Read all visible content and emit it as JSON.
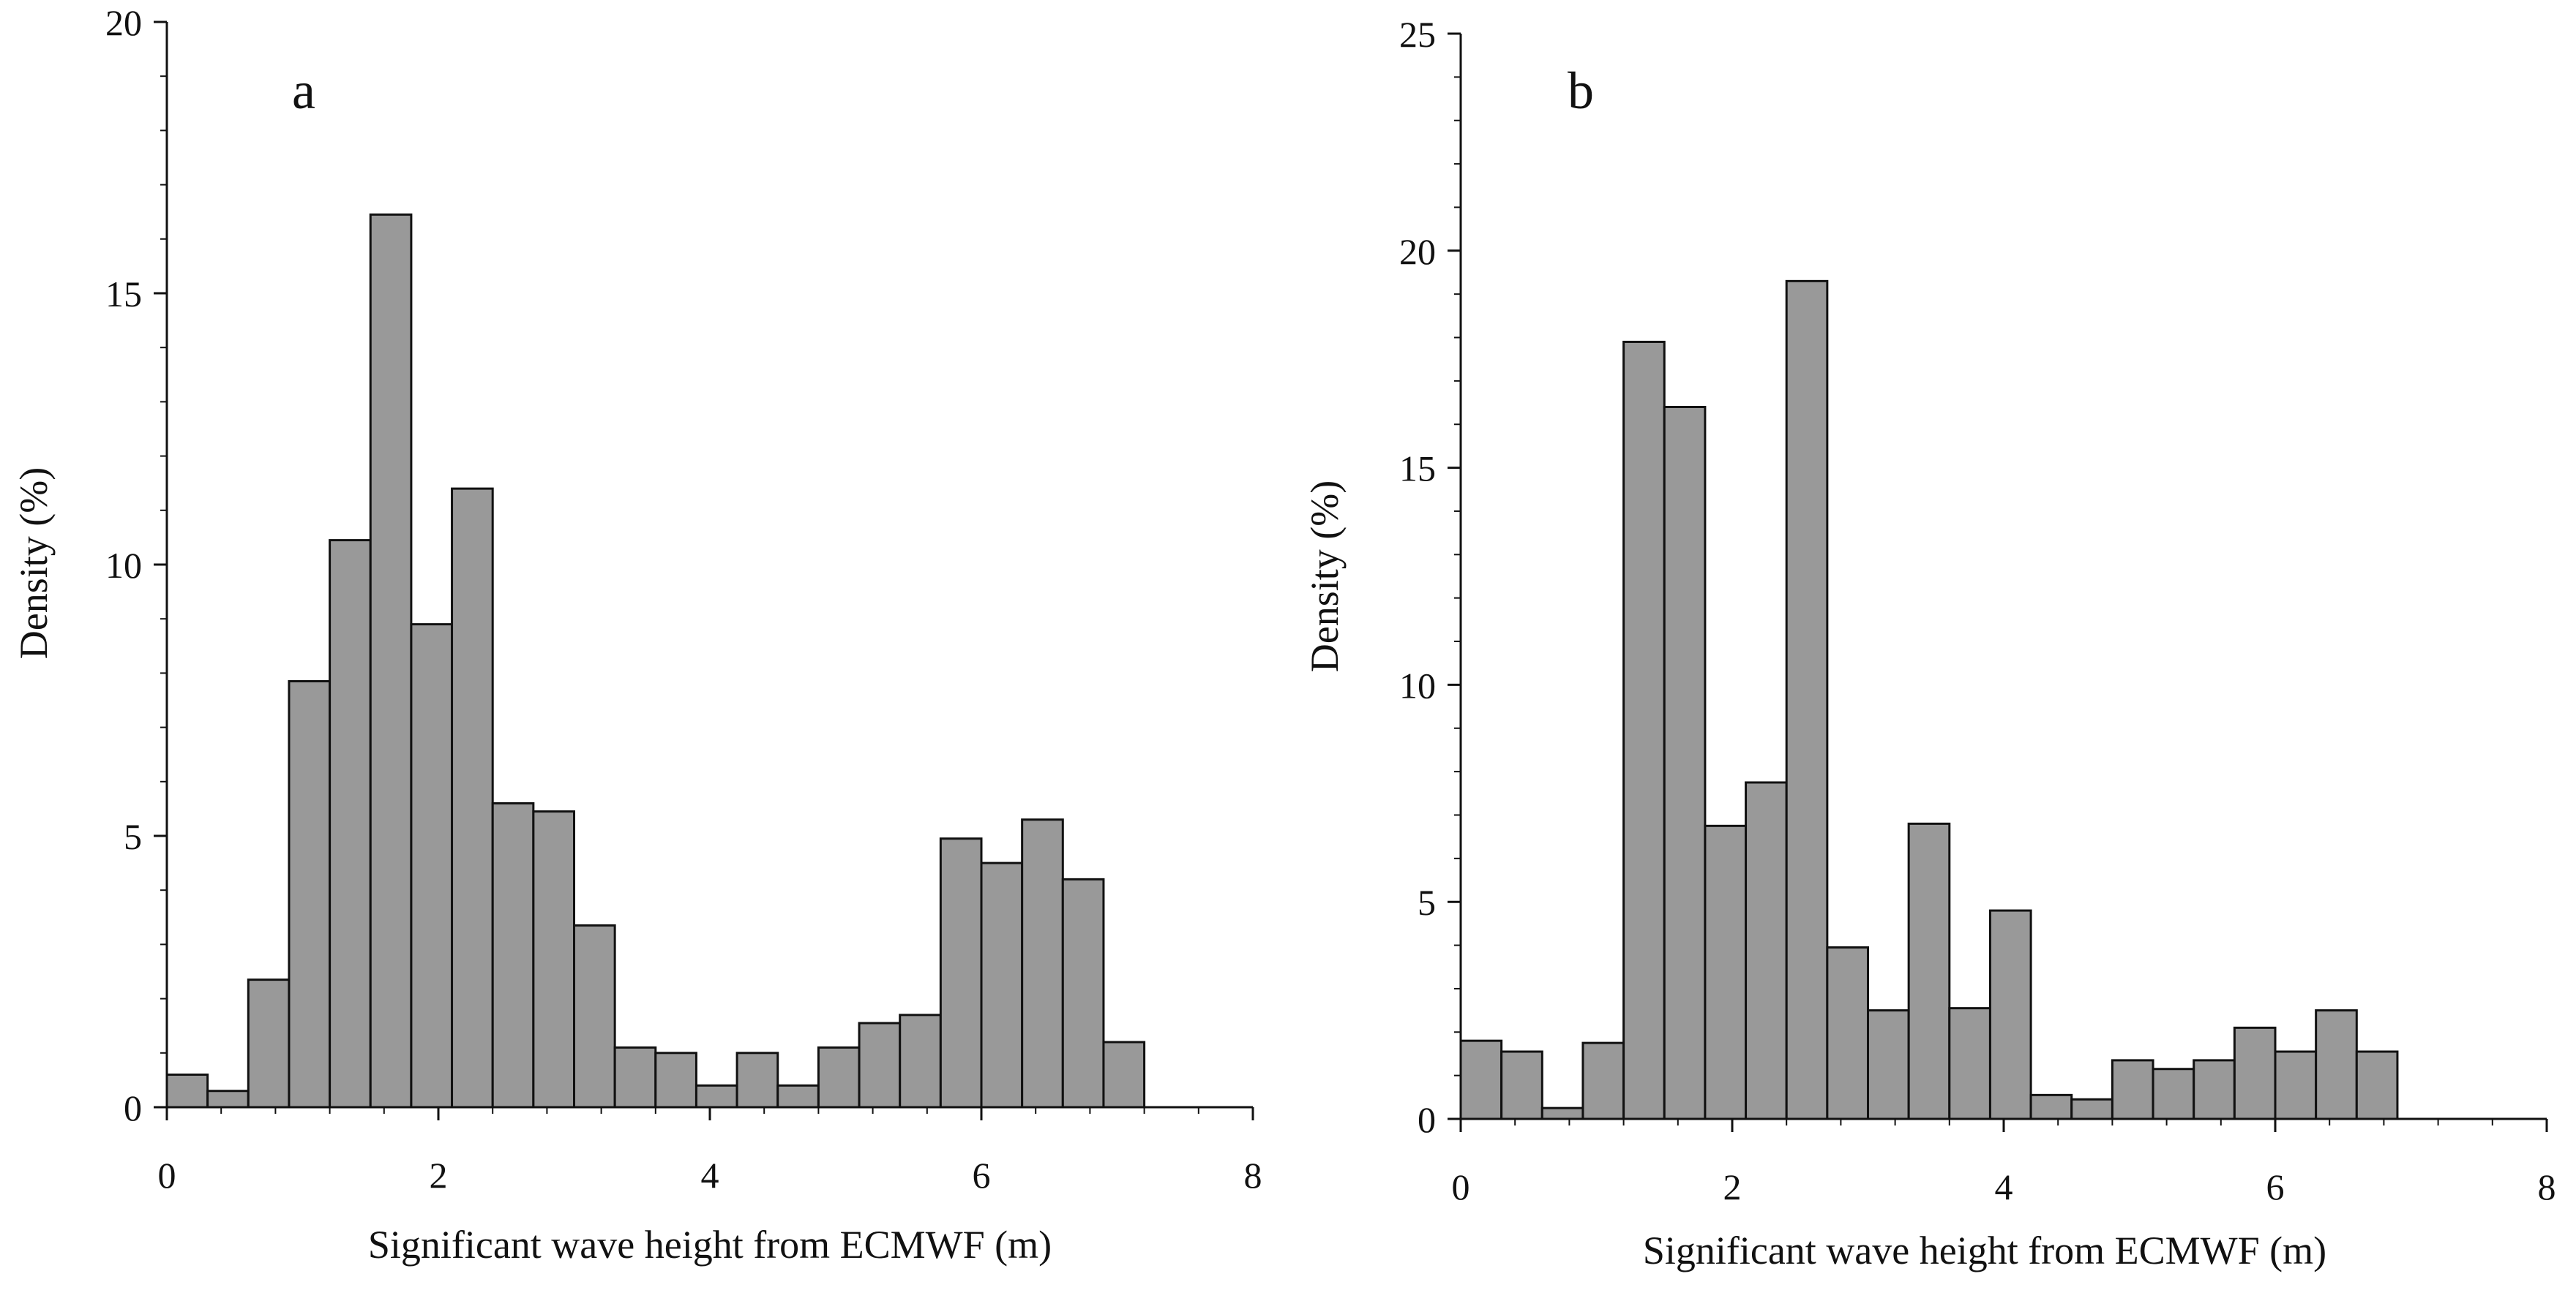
{
  "figure": {
    "bar_fill": "#999999",
    "bar_stroke": "#111111",
    "axis_color": "#111111"
  },
  "chart_data": [
    {
      "type": "bar",
      "panel_label": "a",
      "xlabel": "Significant wave height from ECMWF (m)",
      "ylabel": "Density (%)",
      "xlim": [
        0,
        8
      ],
      "ylim": [
        0,
        20
      ],
      "x_ticks": [
        "0",
        "2",
        "4",
        "6",
        "8"
      ],
      "y_ticks": [
        "0",
        "5",
        "10",
        "15",
        "20"
      ],
      "bin_width": 0.3,
      "bin_starts": [
        0.0,
        0.3,
        0.6,
        0.9,
        1.2,
        1.5,
        1.8,
        2.1,
        2.4,
        2.7,
        3.0,
        3.3,
        3.6,
        3.9,
        4.2,
        4.5,
        4.8,
        5.1,
        5.4,
        5.7,
        6.0,
        6.3,
        6.6,
        6.9
      ],
      "values": [
        0.6,
        0.3,
        2.35,
        7.85,
        10.45,
        16.45,
        8.9,
        11.4,
        5.6,
        5.45,
        3.35,
        1.1,
        1.0,
        0.4,
        1.0,
        0.4,
        1.1,
        1.55,
        1.7,
        4.95,
        4.5,
        5.3,
        4.2,
        1.2
      ]
    },
    {
      "type": "bar",
      "panel_label": "b",
      "xlabel": "Significant wave height from ECMWF (m)",
      "ylabel": "Density (%)",
      "xlim": [
        0,
        8
      ],
      "ylim": [
        0,
        25
      ],
      "x_ticks": [
        "0",
        "2",
        "4",
        "6",
        "8"
      ],
      "y_ticks": [
        "0",
        "5",
        "10",
        "15",
        "20",
        "25"
      ],
      "bin_width": 0.3,
      "bin_starts": [
        0.0,
        0.3,
        0.6,
        0.9,
        1.2,
        1.5,
        1.8,
        2.1,
        2.4,
        2.7,
        3.0,
        3.3,
        3.6,
        3.9,
        4.2,
        4.5,
        4.8,
        5.1,
        5.4,
        5.7,
        6.0,
        6.3,
        6.6
      ],
      "values": [
        1.8,
        1.55,
        0.25,
        1.75,
        17.9,
        16.4,
        6.75,
        7.75,
        19.3,
        3.95,
        2.5,
        6.8,
        2.55,
        4.8,
        0.55,
        0.45,
        1.35,
        1.15,
        1.35,
        2.1,
        1.55,
        2.5,
        1.55
      ]
    }
  ]
}
